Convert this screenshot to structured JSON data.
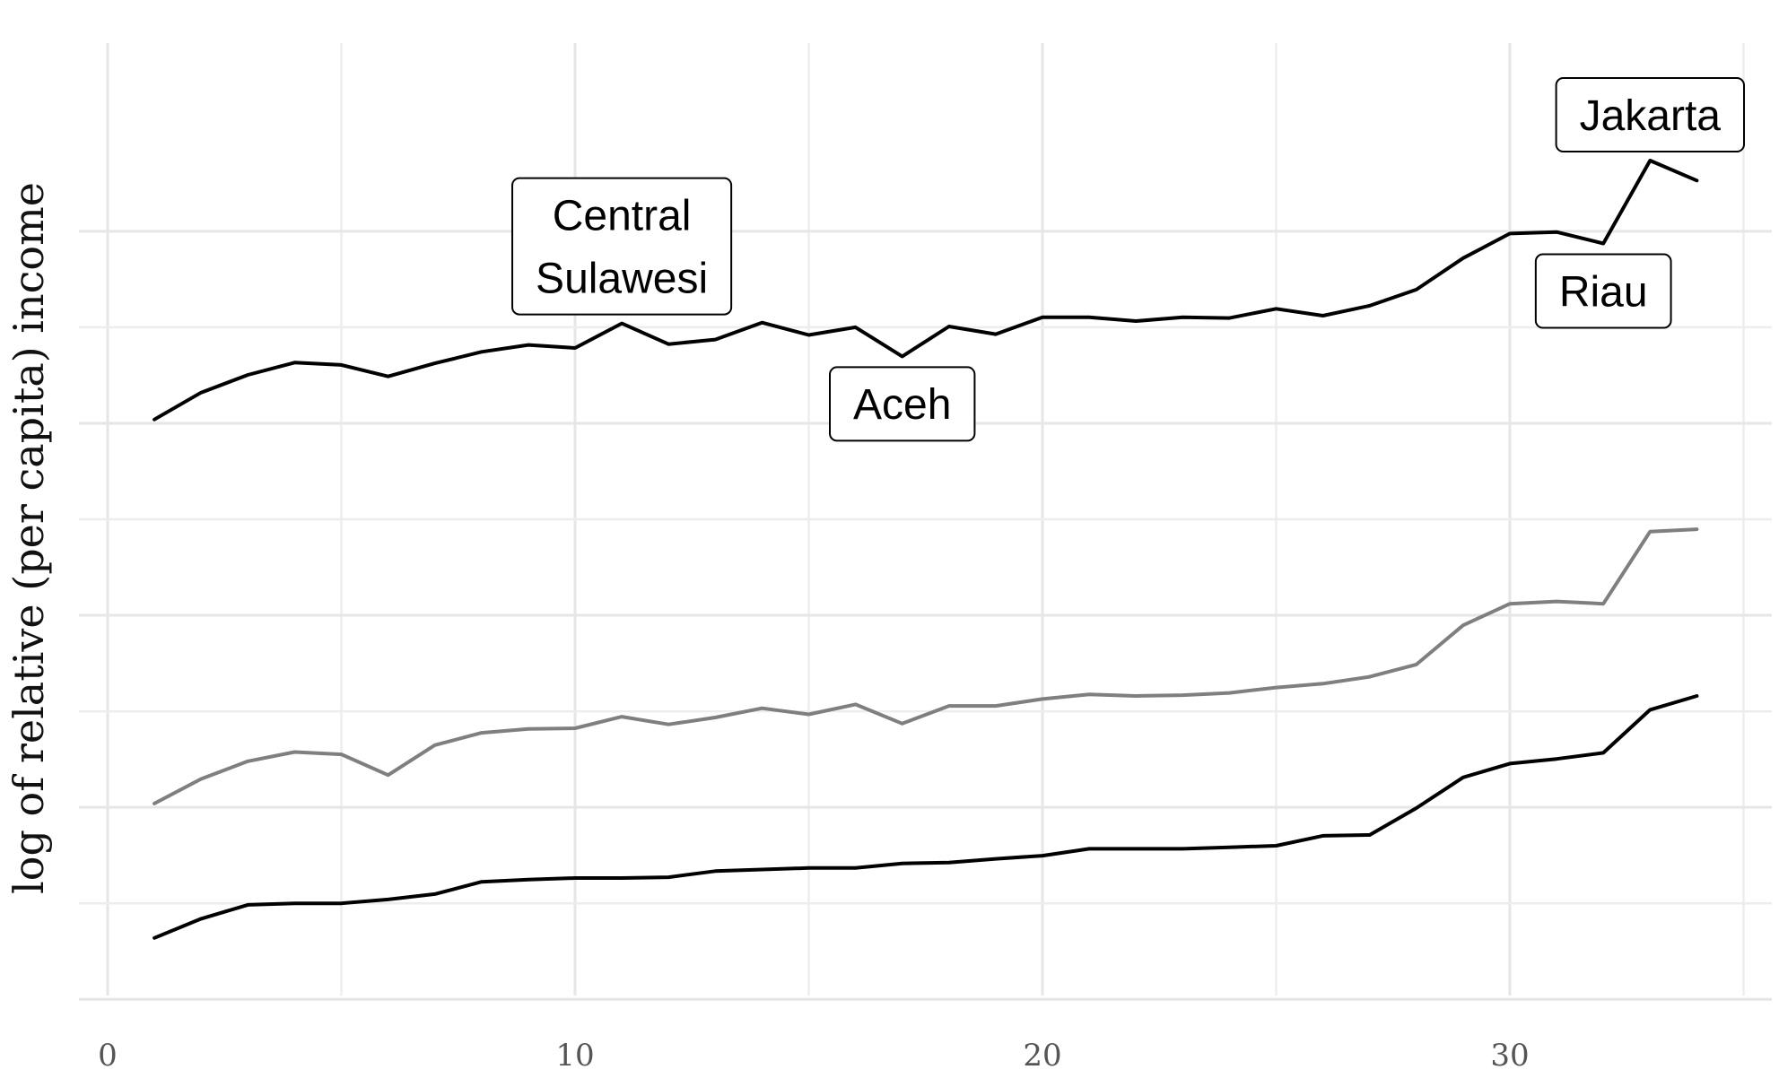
{
  "chart_data": {
    "type": "line",
    "title": "",
    "xlabel": "",
    "ylabel": "log of relative (per capita) income",
    "xlim": [
      0,
      35
    ],
    "ylim": [
      -0.12,
      1.12
    ],
    "x_ticks": [
      0,
      10,
      20,
      30
    ],
    "y_tick_labels_shown": false,
    "grid": true,
    "legend": "none",
    "x": [
      1,
      2,
      3,
      4,
      5,
      6,
      7,
      8,
      9,
      10,
      11,
      12,
      13,
      14,
      15,
      16,
      17,
      18,
      19,
      20,
      21,
      22,
      23,
      24,
      25,
      26,
      27,
      28,
      29,
      30,
      31,
      32,
      33,
      34
    ],
    "series": [
      {
        "color": "#000000",
        "values": [
          0.63,
          0.665,
          0.688,
          0.704,
          0.701,
          0.686,
          0.703,
          0.718,
          0.727,
          0.723,
          0.755,
          0.728,
          0.734,
          0.756,
          0.74,
          0.75,
          0.712,
          0.751,
          0.741,
          0.763,
          0.763,
          0.758,
          0.763,
          0.762,
          0.774,
          0.765,
          0.778,
          0.799,
          0.84,
          0.872,
          0.874,
          0.859,
          0.967,
          0.941
        ]
      },
      {
        "color": "#7f7f7f",
        "values": [
          0.13,
          0.162,
          0.185,
          0.197,
          0.194,
          0.167,
          0.206,
          0.222,
          0.227,
          0.228,
          0.243,
          0.233,
          0.242,
          0.254,
          0.246,
          0.259,
          0.234,
          0.257,
          0.257,
          0.266,
          0.272,
          0.27,
          0.271,
          0.274,
          0.281,
          0.286,
          0.295,
          0.311,
          0.362,
          0.39,
          0.393,
          0.39,
          0.484,
          0.487
        ]
      },
      {
        "color": "#000000",
        "values": [
          -0.045,
          -0.02,
          -0.002,
          0.0,
          0.0,
          0.005,
          0.012,
          0.028,
          0.031,
          0.033,
          0.033,
          0.034,
          0.042,
          0.044,
          0.046,
          0.046,
          0.052,
          0.053,
          0.058,
          0.062,
          0.071,
          0.071,
          0.071,
          0.073,
          0.075,
          0.088,
          0.089,
          0.124,
          0.164,
          0.182,
          0.188,
          0.196,
          0.252,
          0.27
        ]
      }
    ],
    "annotations": [
      {
        "lines": [
          "Central",
          "Sulawesi"
        ],
        "x": 11,
        "y": 0.755
      },
      {
        "lines": [
          "Aceh"
        ],
        "x": 17,
        "y": 0.712
      },
      {
        "lines": [
          "Riau"
        ],
        "x": 32,
        "y": 0.859
      },
      {
        "lines": [
          "Jakarta"
        ],
        "x": 33,
        "y": 0.967
      }
    ]
  }
}
